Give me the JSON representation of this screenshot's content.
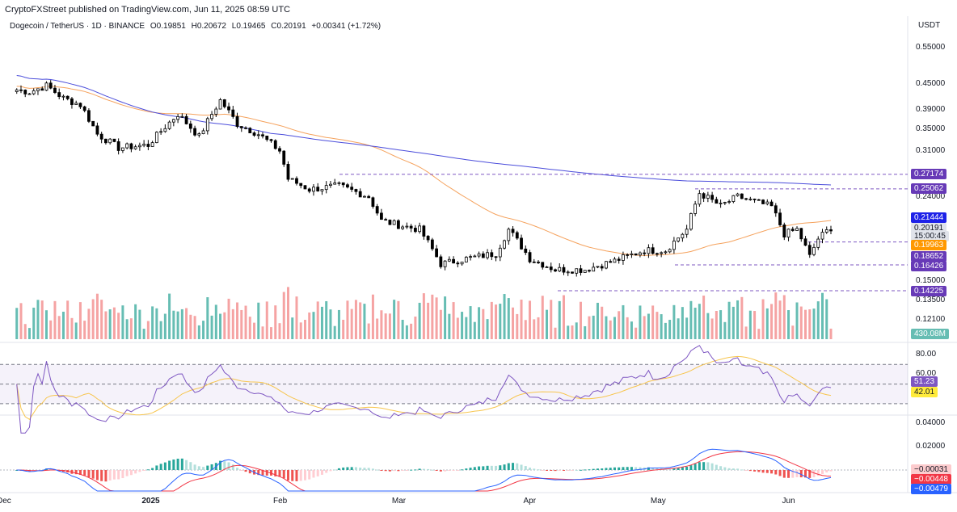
{
  "header": {
    "publisher": "CryptoFXStreet published on TradingView.com, Jun 11, 2025 08:59 UTC",
    "symbol": "Dogecoin / TetherUS · 1D · BINANCE",
    "open": "O0.19851",
    "high": "H0.20672",
    "low": "L0.19465",
    "close": "C0.20191",
    "change": "+0.00341 (+1.72%)"
  },
  "price_axis": {
    "currency": "USDT",
    "ticks": [
      "0.55000",
      "0.45000",
      "0.39000",
      "0.35000",
      "0.31000",
      "0.24000",
      "0.15000",
      "0.13500",
      "0.12100"
    ]
  },
  "price_tags": [
    {
      "label": "0.27174",
      "bg": "#673ab7",
      "fg": "#ffffff"
    },
    {
      "label": "0.25062",
      "bg": "#673ab7",
      "fg": "#ffffff"
    },
    {
      "label": "0.21444",
      "bg": "#1e22e8",
      "fg": "#ffffff"
    },
    {
      "label": "0.20191",
      "bg": "#e0e3eb",
      "fg": "#131722"
    },
    {
      "label": "15:00:45",
      "bg": "#e0e3eb",
      "fg": "#131722"
    },
    {
      "label": "0.19963",
      "bg": "#ff9800",
      "fg": "#ffffff"
    },
    {
      "label": "0.18652",
      "bg": "#673ab7",
      "fg": "#ffffff"
    },
    {
      "label": "0.16426",
      "bg": "#673ab7",
      "fg": "#ffffff"
    },
    {
      "label": "0.14225",
      "bg": "#673ab7",
      "fg": "#ffffff"
    },
    {
      "label": "430.08M",
      "bg": "#66bdb3",
      "fg": "#ffffff"
    }
  ],
  "rsi_axis": {
    "ticks": [
      "80.00",
      "60.00"
    ]
  },
  "rsi_tags": [
    {
      "label": "51.23",
      "bg": "#7e57c2",
      "fg": "#ffffff"
    },
    {
      "label": "42.01",
      "bg": "#ffeb3b",
      "fg": "#131722"
    }
  ],
  "macd_axis": {
    "ticks": [
      "0.04000",
      "0.02000"
    ]
  },
  "macd_tags": [
    {
      "label": "−0.00031",
      "bg": "#fccbcd",
      "fg": "#131722"
    },
    {
      "label": "−0.00448",
      "bg": "#f23645",
      "fg": "#ffffff"
    },
    {
      "label": "−0.00479",
      "bg": "#2962ff",
      "fg": "#ffffff"
    }
  ],
  "time_axis": {
    "ticks": [
      "Dec",
      "2025",
      "Feb",
      "Mar",
      "Apr",
      "May",
      "Jun"
    ]
  },
  "colors": {
    "up": "#ffffff",
    "down": "#000000",
    "ma50": "#f5a25d",
    "ma200": "#4b4ddb",
    "vol_up": "#66bdb3",
    "vol_down": "#f5a3a3",
    "rsi": "#7e57c2",
    "rsi_ma": "#f7c54d",
    "macd": "#2962ff",
    "signal": "#f23645",
    "hist_pos": "#26a69a",
    "hist_neg": "#ef5350",
    "hline": "#7e57c2"
  },
  "chart_data": {
    "type": "line",
    "series": [
      {
        "name": "Dogecoin / TetherUS",
        "x": [
          "2024-12-01",
          "2024-12-04",
          "2024-12-08",
          "2024-12-12",
          "2024-12-16",
          "2024-12-20",
          "2024-12-25",
          "2025-01-01",
          "2025-01-08",
          "2025-01-13",
          "2025-01-18",
          "2025-01-22",
          "2025-01-27",
          "2025-02-01",
          "2025-02-03",
          "2025-02-08",
          "2025-02-15",
          "2025-02-22",
          "2025-02-25",
          "2025-03-01",
          "2025-03-06",
          "2025-03-11",
          "2025-03-17",
          "2025-03-24",
          "2025-03-27",
          "2025-04-01",
          "2025-04-07",
          "2025-04-14",
          "2025-04-21",
          "2025-04-28",
          "2025-05-03",
          "2025-05-08",
          "2025-05-11",
          "2025-05-16",
          "2025-05-20",
          "2025-05-23",
          "2025-05-28",
          "2025-05-31",
          "2025-06-03",
          "2025-06-06",
          "2025-06-08",
          "2025-06-11"
        ],
        "values": [
          0.435,
          0.43,
          0.445,
          0.415,
          0.4,
          0.34,
          0.315,
          0.32,
          0.38,
          0.335,
          0.41,
          0.36,
          0.34,
          0.31,
          0.265,
          0.25,
          0.255,
          0.24,
          0.21,
          0.205,
          0.2,
          0.165,
          0.17,
          0.175,
          0.2,
          0.17,
          0.16,
          0.16,
          0.168,
          0.178,
          0.178,
          0.2,
          0.245,
          0.228,
          0.24,
          0.235,
          0.227,
          0.195,
          0.2,
          0.172,
          0.19,
          0.202
        ]
      }
    ],
    "hlines": [
      0.27174,
      0.25062,
      0.18652,
      0.16426,
      0.14225
    ],
    "ylabel": "USDT",
    "ylim": [
      0.11,
      0.6
    ],
    "log_scale": true,
    "rsi": {
      "value": 51.23,
      "ma": 42.01,
      "levels": [
        70,
        50,
        30
      ]
    },
    "macd": {
      "histogram": -0.00031,
      "signal": -0.00448,
      "macd": -0.00479
    }
  }
}
